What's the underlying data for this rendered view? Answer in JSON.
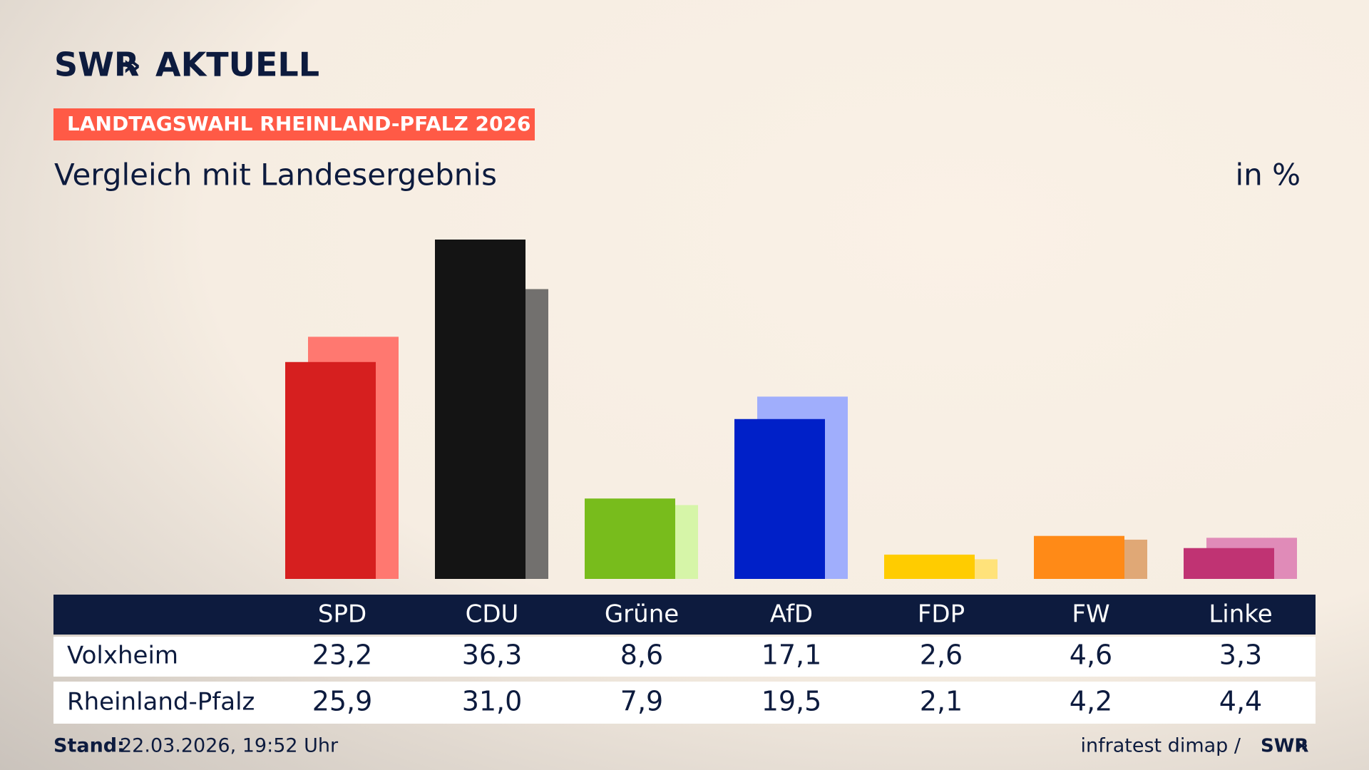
{
  "chart_data": {
    "type": "bar",
    "brand": "SWR",
    "brand_suffix": "AKTUELL",
    "kicker": "LANDTAGSWAHL RHEINLAND-PFALZ 2026",
    "title": "Vergleich mit Landesergebnis",
    "unit_label": "in %",
    "categories": [
      "SPD",
      "CDU",
      "Grüne",
      "AfD",
      "FDP",
      "FW",
      "Linke"
    ],
    "series": [
      {
        "name": "Volxheim",
        "colors": [
          "#d61f1f",
          "#141414",
          "#78bc1c",
          "#0020c8",
          "#ffcc00",
          "#ff8a17",
          "#c03373"
        ],
        "values": [
          23.2,
          36.3,
          8.6,
          17.1,
          2.6,
          4.6,
          3.3
        ],
        "value_labels": [
          "23,2",
          "36,3",
          "8,6",
          "17,1",
          "2,6",
          "4,6",
          "3,3"
        ]
      },
      {
        "name": "Rheinland-Pfalz",
        "colors": [
          "#ff7870",
          "#72706e",
          "#d6f5a8",
          "#a0aefc",
          "#ffe27a",
          "#e0a876",
          "#e08bb8"
        ],
        "values": [
          25.9,
          31.0,
          7.9,
          19.5,
          2.1,
          4.2,
          4.4
        ],
        "value_labels": [
          "25,9",
          "31,0",
          "7,9",
          "19,5",
          "2,1",
          "4,2",
          "4,4"
        ]
      }
    ],
    "footer_label": "Stand:",
    "footer_date": "22.03.2026, 19:52 Uhr",
    "source": "infratest dimap /",
    "source_brand": "SWR"
  }
}
